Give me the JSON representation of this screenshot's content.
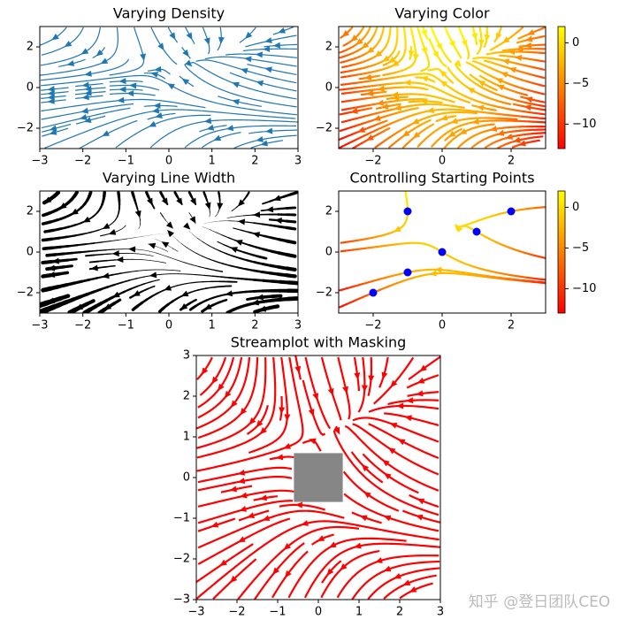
{
  "chart_data": [
    {
      "type": "streamplot",
      "title": "Varying Density",
      "color": "#1f77b4",
      "density": [
        0.5,
        1
      ],
      "xlim": [
        -3,
        3
      ],
      "ylim": [
        -3,
        3
      ],
      "xticks": [
        {
          "value": -3,
          "label": "−3"
        },
        {
          "value": -2,
          "label": "−2"
        },
        {
          "value": -1,
          "label": "−1"
        },
        0,
        1,
        2,
        3
      ],
      "yticks": [
        {
          "value": -2,
          "label": "−2"
        },
        0,
        2
      ]
    },
    {
      "type": "streamplot",
      "title": "Varying Color",
      "colormap": "autumn",
      "color_by": "u",
      "linewidth": 2,
      "density": [
        1,
        1
      ],
      "xlim": [
        -3,
        3
      ],
      "ylim": [
        -3,
        3
      ],
      "xticks": [
        {
          "value": -2,
          "label": "−2"
        },
        0,
        2
      ],
      "yticks": [
        {
          "value": -2,
          "label": "−2"
        },
        0,
        2
      ],
      "colorbar": {
        "lim": [
          -13,
          2
        ],
        "ticks": [
          0,
          {
            "value": -5,
            "label": "−5"
          },
          {
            "value": -10,
            "label": "−10"
          }
        ]
      }
    },
    {
      "type": "streamplot",
      "title": "Varying Line Width",
      "color": "#000000",
      "width_by": "speed",
      "density": [
        0.6,
        0.6
      ],
      "xlim": [
        -3,
        3
      ],
      "ylim": [
        -3,
        3
      ],
      "xticks": [
        {
          "value": -3,
          "label": "−3"
        },
        {
          "value": -2,
          "label": "−2"
        },
        {
          "value": -1,
          "label": "−1"
        },
        0,
        1,
        2,
        3
      ],
      "yticks": [
        {
          "value": -2,
          "label": "−2"
        },
        0,
        2
      ]
    },
    {
      "type": "streamplot",
      "title": "Controlling Starting Points",
      "colormap": "autumn",
      "color_by": "u",
      "linewidth": 2,
      "start_points": {
        "x": [
          -2,
          -1,
          0,
          1,
          2,
          -1
        ],
        "y": [
          -2,
          -1,
          0,
          1,
          2,
          2
        ],
        "color": "#0000ff"
      },
      "xlim": [
        -3,
        3
      ],
      "ylim": [
        -3,
        3
      ],
      "xticks": [
        {
          "value": -2,
          "label": "−2"
        },
        0,
        2
      ],
      "yticks": [
        {
          "value": -2,
          "label": "−2"
        },
        0,
        2
      ],
      "colorbar": {
        "lim": [
          -13,
          2
        ],
        "ticks": [
          0,
          {
            "value": -5,
            "label": "−5"
          },
          {
            "value": -10,
            "label": "−10"
          }
        ]
      }
    },
    {
      "type": "streamplot",
      "title": "Streamplot with Masking",
      "color": "#ff0000",
      "linewidth": 2,
      "density": [
        1,
        1
      ],
      "mask": {
        "xlim": [
          -0.6,
          0.6
        ],
        "ylim": [
          -0.6,
          0.6
        ],
        "color": "#808080"
      },
      "xlim": [
        -3,
        3
      ],
      "ylim": [
        -3,
        3
      ],
      "xticks": [
        {
          "value": -3,
          "label": "−3"
        },
        {
          "value": -2,
          "label": "−2"
        },
        {
          "value": -1,
          "label": "−1"
        },
        0,
        1,
        2,
        3
      ],
      "yticks": [
        {
          "value": -3,
          "label": "−3"
        },
        {
          "value": -2,
          "label": "−2"
        },
        {
          "value": -1,
          "label": "−1"
        },
        0,
        1,
        2,
        3
      ]
    }
  ],
  "watermark": "知乎 @登日团队CEO"
}
